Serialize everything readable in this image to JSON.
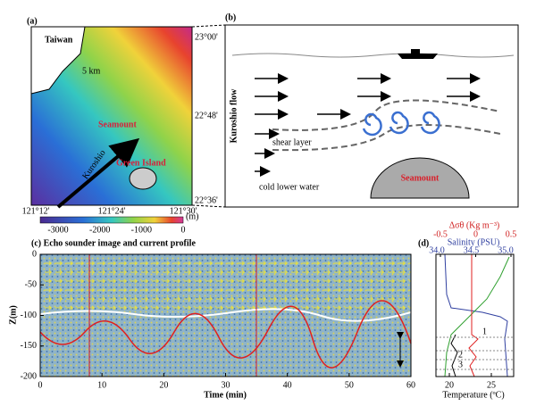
{
  "panel_a": {
    "label": "(a)",
    "taiwan": "Taiwan",
    "scale": "5 km",
    "seamount": "Seamount",
    "green_island": "Green Island",
    "kuroshio": "Kuroshio",
    "lat_labels": [
      "23°00'",
      "22°48'",
      "22°36'"
    ],
    "lon_labels": [
      "121°12'",
      "121°24'",
      "121°30'"
    ],
    "colorbar_ticks": [
      "-3000",
      "-2000",
      "-1000",
      "0"
    ],
    "colorbar_unit": "(m)"
  },
  "panel_b": {
    "label": "(b)",
    "flow": "Kuroshio flow",
    "shear": "shear layer",
    "cold": "cold lower water",
    "seamount": "Seamount"
  },
  "panel_c": {
    "title": "(c) Echo sounder image and current profile",
    "y_label": "Z(m)",
    "x_label": "Time (min)",
    "y_ticks": [
      "0",
      "-50",
      "-100",
      "-150",
      "-200"
    ],
    "x_ticks": [
      "0",
      "10",
      "20",
      "30",
      "40",
      "50",
      "60"
    ]
  },
  "panel_d": {
    "label": "(d)",
    "density_axis": "Δσθ (Kg m⁻³)",
    "density_ticks": [
      "-0.5",
      "0",
      "0.5"
    ],
    "salinity_axis": "Salinity (PSU)",
    "salinity_ticks": [
      "34.0",
      "34.5",
      "35.0"
    ],
    "temperature_axis": "Temperature (ºC)",
    "temperature_ticks": [
      "20",
      "25"
    ],
    "layer_labels": [
      "1",
      "2",
      "3"
    ]
  }
}
